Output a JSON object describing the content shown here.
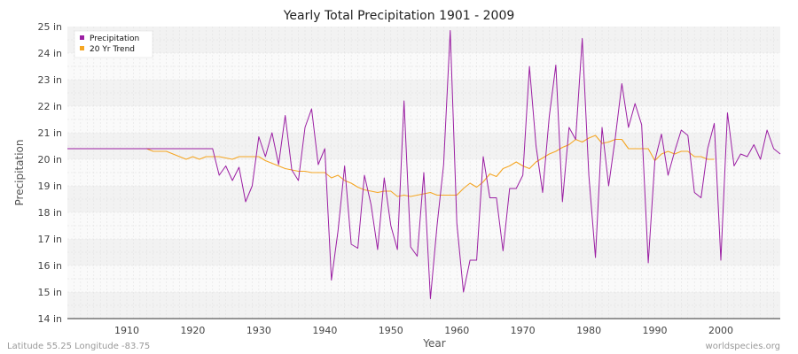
{
  "chart_data": {
    "type": "line",
    "title": "Yearly Total Precipitation 1901 - 2009",
    "xlabel": "Year",
    "ylabel": "Precipitation",
    "xlim": [
      1901,
      2009
    ],
    "ylim": [
      14,
      25
    ],
    "x_ticks": [
      1910,
      1920,
      1930,
      1940,
      1950,
      1960,
      1970,
      1980,
      1990,
      2000
    ],
    "y_ticks": [
      14,
      15,
      16,
      17,
      18,
      19,
      20,
      21,
      22,
      23,
      24,
      25
    ],
    "y_tick_labels": [
      "14 in",
      "15 in",
      "16 in",
      "17 in",
      "18 in",
      "19 in",
      "20 in",
      "21 in",
      "22 in",
      "23 in",
      "24 in",
      "25 in"
    ],
    "grid": true,
    "legend_position": "top-left",
    "series": [
      {
        "name": "Precipitation",
        "color": "#9b1fa3",
        "x": [
          1901,
          1902,
          1903,
          1904,
          1905,
          1906,
          1907,
          1908,
          1909,
          1910,
          1911,
          1912,
          1913,
          1914,
          1915,
          1916,
          1917,
          1918,
          1919,
          1920,
          1921,
          1922,
          1923,
          1924,
          1925,
          1926,
          1927,
          1928,
          1929,
          1930,
          1931,
          1932,
          1933,
          1934,
          1935,
          1936,
          1937,
          1938,
          1939,
          1940,
          1941,
          1942,
          1943,
          1944,
          1945,
          1946,
          1947,
          1948,
          1949,
          1950,
          1951,
          1952,
          1953,
          1954,
          1955,
          1956,
          1957,
          1958,
          1959,
          1960,
          1961,
          1962,
          1963,
          1964,
          1965,
          1966,
          1967,
          1968,
          1969,
          1970,
          1971,
          1972,
          1973,
          1974,
          1975,
          1976,
          1977,
          1978,
          1979,
          1980,
          1981,
          1982,
          1983,
          1984,
          1985,
          1986,
          1987,
          1988,
          1989,
          1990,
          1991,
          1992,
          1993,
          1994,
          1995,
          1996,
          1997,
          1998,
          1999,
          2000,
          2001,
          2002,
          2003,
          2004,
          2005,
          2006,
          2007,
          2008,
          2009
        ],
        "values": [
          20.4,
          20.4,
          20.4,
          20.4,
          20.4,
          20.4,
          20.4,
          20.4,
          20.4,
          20.4,
          20.4,
          20.4,
          20.4,
          20.4,
          20.4,
          20.4,
          20.4,
          20.4,
          20.4,
          20.4,
          20.4,
          20.4,
          20.4,
          19.4,
          19.75,
          19.2,
          19.7,
          18.4,
          19.0,
          20.85,
          20.1,
          21.0,
          19.8,
          21.65,
          19.6,
          19.2,
          21.2,
          21.9,
          19.8,
          20.4,
          15.45,
          17.3,
          19.75,
          16.8,
          16.65,
          19.4,
          18.3,
          16.6,
          19.3,
          17.5,
          16.6,
          22.2,
          16.7,
          16.35,
          19.5,
          14.75,
          17.5,
          19.8,
          24.85,
          17.6,
          15.0,
          16.2,
          16.2,
          20.1,
          18.55,
          18.55,
          16.55,
          18.9,
          18.9,
          19.4,
          23.5,
          20.5,
          18.75,
          21.6,
          23.55,
          18.4,
          21.2,
          20.75,
          24.55,
          19.4,
          16.3,
          21.2,
          19.0,
          20.8,
          22.85,
          21.2,
          22.1,
          21.3,
          16.1,
          19.95,
          20.95,
          19.4,
          20.3,
          21.1,
          20.9,
          18.75,
          18.55,
          20.4,
          21.35,
          16.2,
          21.75,
          19.75,
          20.2,
          20.1,
          20.55,
          20.0,
          21.1,
          20.4,
          20.2
        ]
      },
      {
        "name": "20 Yr Trend",
        "color": "#f5a623",
        "x": [
          1901,
          1902,
          1903,
          1904,
          1905,
          1906,
          1907,
          1908,
          1909,
          1910,
          1911,
          1912,
          1913,
          1914,
          1915,
          1916,
          1917,
          1918,
          1919,
          1920,
          1921,
          1922,
          1923,
          1924,
          1925,
          1926,
          1927,
          1928,
          1929,
          1930,
          1931,
          1932,
          1933,
          1934,
          1935,
          1936,
          1937,
          1938,
          1939,
          1940,
          1941,
          1942,
          1943,
          1944,
          1945,
          1946,
          1947,
          1948,
          1949,
          1950,
          1951,
          1952,
          1953,
          1954,
          1955,
          1956,
          1957,
          1958,
          1959,
          1960,
          1961,
          1962,
          1963,
          1964,
          1965,
          1966,
          1967,
          1968,
          1969,
          1970,
          1971,
          1972,
          1973,
          1974,
          1975,
          1976,
          1977,
          1978,
          1979,
          1980,
          1981,
          1982,
          1983,
          1984,
          1985,
          1986,
          1987,
          1988,
          1989,
          1990,
          1991,
          1992,
          1993,
          1994,
          1995,
          1996,
          1997,
          1998,
          1999
        ],
        "values": [
          20.4,
          20.4,
          20.4,
          20.4,
          20.4,
          20.4,
          20.4,
          20.4,
          20.4,
          20.4,
          20.4,
          20.4,
          20.4,
          20.3,
          20.3,
          20.3,
          20.2,
          20.1,
          20.0,
          20.1,
          20.0,
          20.1,
          20.1,
          20.1,
          20.05,
          20.0,
          20.1,
          20.1,
          20.1,
          20.1,
          19.95,
          19.85,
          19.75,
          19.65,
          19.6,
          19.55,
          19.55,
          19.5,
          19.5,
          19.5,
          19.3,
          19.4,
          19.2,
          19.1,
          18.95,
          18.85,
          18.8,
          18.75,
          18.8,
          18.8,
          18.6,
          18.65,
          18.6,
          18.65,
          18.7,
          18.75,
          18.65,
          18.65,
          18.65,
          18.65,
          18.9,
          19.1,
          18.95,
          19.15,
          19.45,
          19.35,
          19.65,
          19.75,
          19.9,
          19.75,
          19.65,
          19.9,
          20.05,
          20.2,
          20.3,
          20.45,
          20.55,
          20.75,
          20.65,
          20.8,
          20.9,
          20.6,
          20.65,
          20.75,
          20.75,
          20.4,
          20.4,
          20.4,
          20.4,
          19.95,
          20.2,
          20.3,
          20.2,
          20.3,
          20.3,
          20.1,
          20.1,
          20.0,
          20.0
        ]
      }
    ]
  },
  "footer": {
    "coords": "Latitude 55.25 Longitude -83.75",
    "source": "worldspecies.org"
  }
}
